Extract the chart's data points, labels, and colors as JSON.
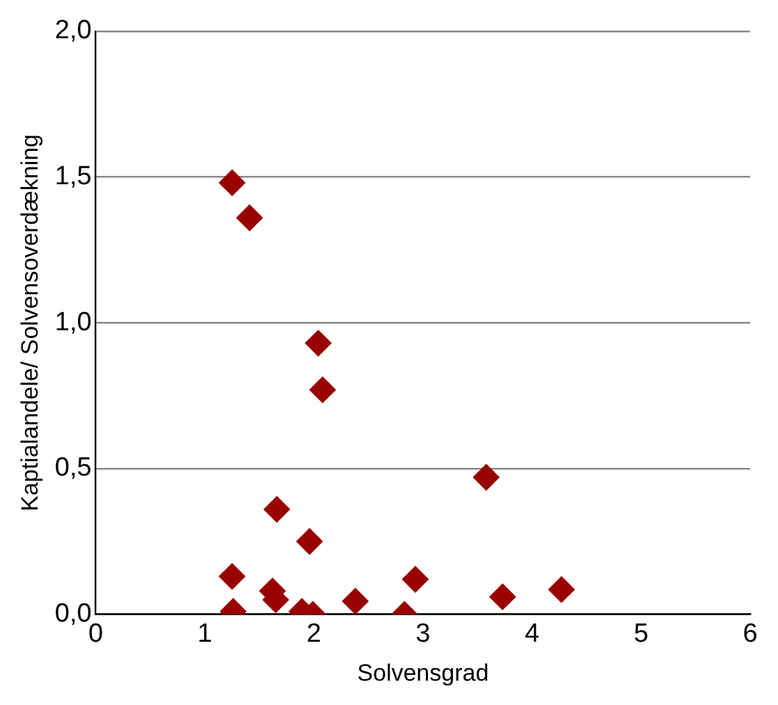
{
  "chart_data": {
    "type": "scatter",
    "xlabel": "Solvensgrad",
    "ylabel": "Kaptialandele/ Solvensoverdækning",
    "x": [
      1.25,
      1.41,
      2.04,
      2.08,
      3.58,
      1.66,
      1.96,
      1.25,
      1.26,
      1.62,
      1.65,
      1.89,
      1.99,
      2.38,
      2.83,
      2.93,
      3.73,
      4.27
    ],
    "values": [
      1.48,
      1.36,
      0.93,
      0.77,
      0.47,
      0.36,
      0.25,
      0.13,
      0.01,
      0.08,
      0.05,
      0.01,
      0.0,
      0.045,
      0.0,
      0.12,
      0.06,
      0.085
    ],
    "color": "#990000",
    "marker": "diamond",
    "grid": "y",
    "xlim": [
      0,
      6
    ],
    "xticks": [
      0,
      1,
      2,
      3,
      4,
      5,
      6
    ],
    "ylim": [
      0,
      2
    ],
    "yticks": [
      {
        "value": 0,
        "label": "0,0"
      },
      {
        "value": 0.5,
        "label": "0,5"
      },
      {
        "value": 1,
        "label": "1,0"
      },
      {
        "value": 1.5,
        "label": "1,5"
      },
      {
        "value": 2,
        "label": "2,0"
      }
    ]
  }
}
